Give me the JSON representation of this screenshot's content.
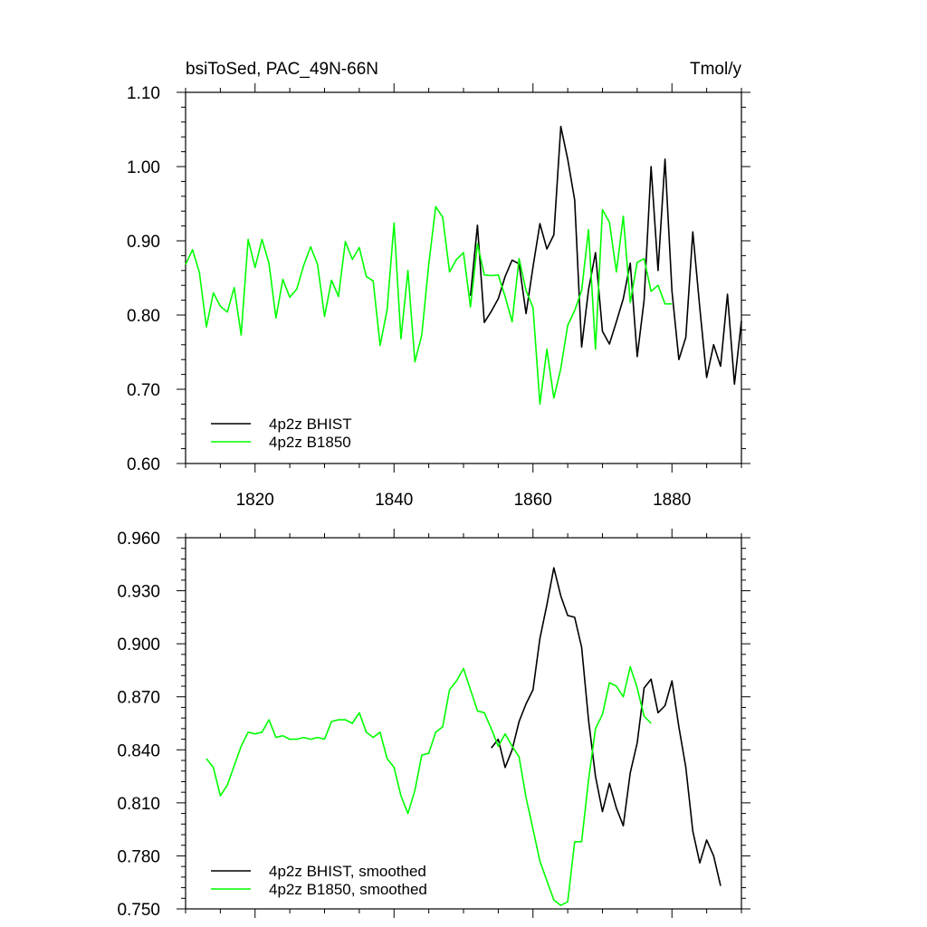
{
  "chart_data": [
    {
      "type": "line",
      "title": "bsiToSed, PAC_49N-66N",
      "units": "Tmol/y",
      "xlim": [
        1810,
        1890
      ],
      "ylim": [
        0.6,
        1.1
      ],
      "xticks": [
        1820,
        1840,
        1860,
        1880
      ],
      "yticks": [
        0.6,
        0.7,
        0.8,
        0.9,
        1.0,
        1.1
      ],
      "ytick_labels": [
        "0.60",
        "0.70",
        "0.80",
        "0.90",
        "1.00",
        "1.10"
      ],
      "xtick_labels": [
        "1820",
        "1840",
        "1860",
        "1880"
      ],
      "legend_position": "bottom-left",
      "series": [
        {
          "name": "4p2z BHIST",
          "color": "#000000",
          "x": [
            1851,
            1852,
            1853,
            1854,
            1855,
            1856,
            1857,
            1858,
            1859,
            1860,
            1861,
            1862,
            1863,
            1864,
            1865,
            1866,
            1867,
            1868,
            1869,
            1870,
            1871,
            1872,
            1873,
            1874,
            1875,
            1876,
            1877,
            1878,
            1879,
            1880,
            1881,
            1882,
            1883,
            1884,
            1885,
            1886,
            1887,
            1888,
            1889,
            1890
          ],
          "y": [
            0.826,
            0.921,
            0.79,
            0.805,
            0.822,
            0.852,
            0.874,
            0.869,
            0.802,
            0.865,
            0.923,
            0.889,
            0.908,
            1.054,
            1.01,
            0.955,
            0.757,
            0.834,
            0.884,
            0.778,
            0.761,
            0.791,
            0.822,
            0.87,
            0.744,
            0.82,
            1.0,
            0.86,
            1.01,
            0.832,
            0.74,
            0.77,
            0.912,
            0.81,
            0.716,
            0.76,
            0.731,
            0.828,
            0.707,
            0.792
          ]
        },
        {
          "name": "4p2z B1850",
          "color": "#00ff00",
          "x": [
            1810,
            1811,
            1812,
            1813,
            1814,
            1815,
            1816,
            1817,
            1818,
            1819,
            1820,
            1821,
            1822,
            1823,
            1824,
            1825,
            1826,
            1827,
            1828,
            1829,
            1830,
            1831,
            1832,
            1833,
            1834,
            1835,
            1836,
            1837,
            1838,
            1839,
            1840,
            1841,
            1842,
            1843,
            1844,
            1845,
            1846,
            1847,
            1848,
            1849,
            1850,
            1851,
            1852,
            1853,
            1854,
            1855,
            1856,
            1857,
            1858,
            1859,
            1860,
            1861,
            1862,
            1863,
            1864,
            1865,
            1866,
            1867,
            1868,
            1869,
            1870,
            1871,
            1872,
            1873,
            1874,
            1875,
            1876,
            1877,
            1878,
            1879,
            1880
          ],
          "y": [
            0.868,
            0.888,
            0.857,
            0.784,
            0.83,
            0.812,
            0.804,
            0.837,
            0.773,
            0.902,
            0.864,
            0.902,
            0.87,
            0.796,
            0.848,
            0.824,
            0.835,
            0.867,
            0.892,
            0.868,
            0.798,
            0.847,
            0.825,
            0.899,
            0.875,
            0.891,
            0.852,
            0.846,
            0.759,
            0.807,
            0.924,
            0.768,
            0.86,
            0.737,
            0.773,
            0.868,
            0.946,
            0.932,
            0.858,
            0.875,
            0.884,
            0.811,
            0.896,
            0.854,
            0.853,
            0.854,
            0.825,
            0.791,
            0.876,
            0.833,
            0.81,
            0.68,
            0.754,
            0.688,
            0.728,
            0.786,
            0.806,
            0.833,
            0.915,
            0.754,
            0.942,
            0.925,
            0.858,
            0.933,
            0.817,
            0.871,
            0.876,
            0.832,
            0.84,
            0.815,
            0.815
          ]
        }
      ]
    },
    {
      "type": "line",
      "xlim": [
        1810,
        1890
      ],
      "ylim": [
        0.75,
        0.96
      ],
      "xticks": [
        1820,
        1840,
        1860,
        1880
      ],
      "yticks": [
        0.75,
        0.78,
        0.81,
        0.84,
        0.87,
        0.9,
        0.93,
        0.96
      ],
      "ytick_labels": [
        "0.750",
        "0.780",
        "0.810",
        "0.840",
        "0.870",
        "0.900",
        "0.930",
        "0.960"
      ],
      "legend_position": "bottom-left",
      "series": [
        {
          "name": "4p2z BHIST, smoothed",
          "color": "#000000",
          "x": [
            1854,
            1855,
            1856,
            1857,
            1858,
            1859,
            1860,
            1861,
            1862,
            1863,
            1864,
            1865,
            1866,
            1867,
            1868,
            1869,
            1870,
            1871,
            1872,
            1873,
            1874,
            1875,
            1876,
            1877,
            1878,
            1879,
            1880,
            1881,
            1882,
            1883,
            1884,
            1885,
            1886,
            1887
          ],
          "y": [
            0.841,
            0.846,
            0.83,
            0.84,
            0.856,
            0.866,
            0.874,
            0.903,
            0.922,
            0.943,
            0.927,
            0.916,
            0.915,
            0.898,
            0.857,
            0.825,
            0.805,
            0.821,
            0.807,
            0.797,
            0.827,
            0.844,
            0.875,
            0.88,
            0.861,
            0.865,
            0.879,
            0.853,
            0.83,
            0.794,
            0.776,
            0.789,
            0.78,
            0.763
          ]
        },
        {
          "name": "4p2z B1850, smoothed",
          "color": "#00ff00",
          "x": [
            1813,
            1814,
            1815,
            1816,
            1817,
            1818,
            1819,
            1820,
            1821,
            1822,
            1823,
            1824,
            1825,
            1826,
            1827,
            1828,
            1829,
            1830,
            1831,
            1832,
            1833,
            1834,
            1835,
            1836,
            1837,
            1838,
            1839,
            1840,
            1841,
            1842,
            1843,
            1844,
            1845,
            1846,
            1847,
            1848,
            1849,
            1850,
            1851,
            1852,
            1853,
            1854,
            1855,
            1856,
            1857,
            1858,
            1859,
            1860,
            1861,
            1862,
            1863,
            1864,
            1865,
            1866,
            1867,
            1868,
            1869,
            1870,
            1871,
            1872,
            1873,
            1874,
            1875,
            1876,
            1877
          ],
          "y": [
            0.835,
            0.83,
            0.814,
            0.82,
            0.831,
            0.842,
            0.85,
            0.849,
            0.85,
            0.857,
            0.847,
            0.848,
            0.846,
            0.846,
            0.847,
            0.846,
            0.847,
            0.846,
            0.856,
            0.857,
            0.857,
            0.855,
            0.861,
            0.85,
            0.847,
            0.85,
            0.835,
            0.83,
            0.814,
            0.804,
            0.817,
            0.837,
            0.838,
            0.85,
            0.853,
            0.874,
            0.879,
            0.886,
            0.874,
            0.862,
            0.861,
            0.852,
            0.842,
            0.849,
            0.842,
            0.836,
            0.813,
            0.795,
            0.777,
            0.766,
            0.755,
            0.752,
            0.754,
            0.788,
            0.788,
            0.823,
            0.852,
            0.86,
            0.878,
            0.876,
            0.87,
            0.887,
            0.875,
            0.859,
            0.855
          ]
        }
      ]
    }
  ]
}
